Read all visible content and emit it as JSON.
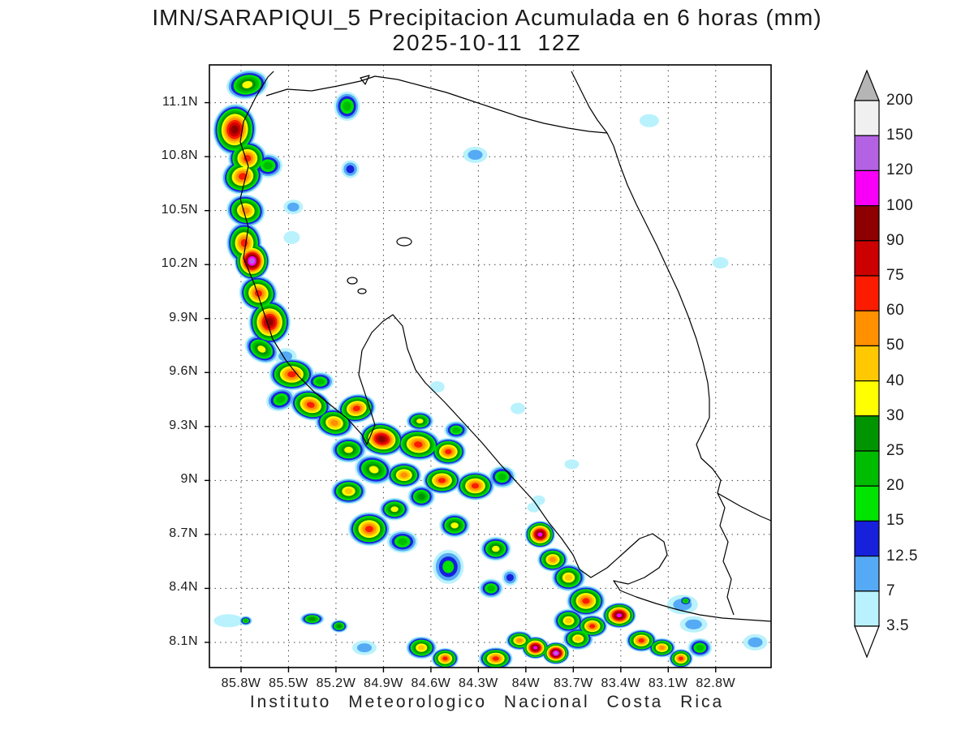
{
  "title": {
    "line1": "IMN/SARAPIQUI_5 Precipitacion Acumulada en 6 horas (mm)",
    "line2": "2025-10-11 12Z"
  },
  "footer": "Instituto Meteorologico Nacional Costa Rica",
  "chart_data": {
    "type": "heatmap",
    "subtype": "filled-contour accumulated precipitation map",
    "title": "IMN/SARAPIQUI_5 Precipitacion Acumulada en 6 horas (mm)",
    "valid_time": "2025-10-11 12Z",
    "units": "mm",
    "region": "Costa Rica",
    "x_ticks": [
      "85.8W",
      "85.5W",
      "85.2W",
      "84.9W",
      "84.6W",
      "84.3W",
      "84W",
      "83.7W",
      "83.4W",
      "83.1W",
      "82.8W"
    ],
    "y_ticks": [
      "11.1N",
      "10.8N",
      "10.5N",
      "10.2N",
      "9.9N",
      "9.6N",
      "9.3N",
      "9N",
      "8.7N",
      "8.4N",
      "8.1N"
    ],
    "colorbar": {
      "labels_top_to_bottom": [
        "200",
        "150",
        "120",
        "100",
        "90",
        "75",
        "60",
        "50",
        "40",
        "30",
        "25",
        "20",
        "15",
        "12.5",
        "7",
        "3.5"
      ],
      "segment_colors_top_to_bottom": [
        "#f0f0f0",
        "#b362e3",
        "#f800f8",
        "#8e0000",
        "#cc0000",
        "#fb1c00",
        "#ff9000",
        "#ffc800",
        "#ffff00",
        "#009400",
        "#00bc00",
        "#00e400",
        "#1721dc",
        "#55aaf5",
        "#b9f2fc"
      ],
      "over_color": "#b5b5b5",
      "under_color": "#ffffff",
      "levels_mm_ascending": [
        3.5,
        7,
        12.5,
        15,
        20,
        25,
        30,
        40,
        50,
        60,
        75,
        90,
        100,
        120,
        150,
        200
      ]
    },
    "palette_ascending": [
      "#b9f2fc",
      "#55aaf5",
      "#1721dc",
      "#00e400",
      "#00bc00",
      "#009400",
      "#ffff00",
      "#ffc800",
      "#ff9000",
      "#fb1c00",
      "#cc0000",
      "#8e0000",
      "#f800f8",
      "#b362e3"
    ],
    "cells_format": "[lon_W, lat_N, radius_x_px, radius_y_px, max_level_index, rotation_deg]",
    "cells": [
      [
        85.76,
        11.2,
        26,
        18,
        6,
        -10
      ],
      [
        85.84,
        10.95,
        27,
        32,
        11,
        5
      ],
      [
        85.76,
        10.79,
        24,
        22,
        9,
        0
      ],
      [
        85.79,
        10.69,
        26,
        22,
        9,
        -15
      ],
      [
        85.63,
        10.75,
        18,
        15,
        4,
        0
      ],
      [
        85.77,
        10.5,
        24,
        20,
        8,
        10
      ],
      [
        85.78,
        10.32,
        22,
        26,
        9,
        0
      ],
      [
        85.73,
        10.22,
        22,
        24,
        13,
        0
      ],
      [
        85.69,
        10.04,
        24,
        22,
        9,
        20
      ],
      [
        85.62,
        9.88,
        26,
        28,
        11,
        0
      ],
      [
        85.67,
        9.73,
        22,
        16,
        6,
        30
      ],
      [
        85.48,
        9.59,
        28,
        20,
        9,
        0
      ],
      [
        85.55,
        9.45,
        18,
        14,
        4,
        -20
      ],
      [
        85.13,
        11.08,
        16,
        18,
        4,
        0
      ],
      [
        85.11,
        10.73,
        11,
        11,
        2,
        0
      ],
      [
        84.32,
        10.81,
        15,
        10,
        1,
        0
      ],
      [
        83.22,
        11.0,
        12,
        8,
        0,
        0
      ],
      [
        82.77,
        10.21,
        10,
        7,
        0,
        0
      ],
      [
        85.47,
        10.52,
        12,
        9,
        1,
        0
      ],
      [
        85.48,
        10.35,
        10,
        8,
        0,
        0
      ],
      [
        84.56,
        9.52,
        9,
        7,
        0,
        0
      ],
      [
        84.05,
        9.4,
        9,
        7,
        0,
        0
      ],
      [
        85.36,
        9.42,
        26,
        19,
        9,
        15
      ],
      [
        85.21,
        9.32,
        24,
        18,
        8,
        10
      ],
      [
        85.07,
        9.4,
        24,
        18,
        9,
        -10
      ],
      [
        84.91,
        9.23,
        28,
        21,
        11,
        10
      ],
      [
        84.68,
        9.2,
        28,
        20,
        9,
        5
      ],
      [
        84.49,
        9.16,
        22,
        17,
        9,
        0
      ],
      [
        85.12,
        9.17,
        22,
        16,
        6,
        0
      ],
      [
        84.96,
        9.06,
        24,
        18,
        6,
        15
      ],
      [
        84.77,
        9.03,
        22,
        16,
        8,
        0
      ],
      [
        84.53,
        9.0,
        24,
        17,
        9,
        0
      ],
      [
        84.32,
        8.97,
        24,
        18,
        9,
        0
      ],
      [
        84.15,
        9.02,
        17,
        14,
        4,
        0
      ],
      [
        85.12,
        8.94,
        22,
        16,
        7,
        0
      ],
      [
        84.99,
        8.73,
        26,
        21,
        9,
        0
      ],
      [
        84.83,
        8.84,
        19,
        14,
        6,
        0
      ],
      [
        84.66,
        8.91,
        17,
        14,
        5,
        0
      ],
      [
        84.78,
        8.66,
        19,
        14,
        4,
        0
      ],
      [
        84.45,
        8.75,
        19,
        15,
        6,
        0
      ],
      [
        84.49,
        8.52,
        19,
        21,
        3,
        0
      ],
      [
        84.19,
        8.62,
        19,
        15,
        6,
        0
      ],
      [
        84.1,
        8.46,
        10,
        10,
        2,
        0
      ],
      [
        84.22,
        8.4,
        15,
        12,
        4,
        0
      ],
      [
        83.91,
        8.7,
        19,
        17,
        12,
        0
      ],
      [
        83.83,
        8.56,
        19,
        15,
        8,
        0
      ],
      [
        83.73,
        8.46,
        21,
        17,
        7,
        0
      ],
      [
        83.62,
        8.33,
        24,
        19,
        9,
        0
      ],
      [
        83.73,
        8.22,
        19,
        15,
        7,
        0
      ],
      [
        85.88,
        8.22,
        18,
        8,
        0,
        0
      ],
      [
        85.77,
        8.22,
        8,
        6,
        4,
        0
      ],
      [
        85.35,
        8.23,
        15,
        8,
        5,
        0
      ],
      [
        85.18,
        8.19,
        11,
        8,
        5,
        0
      ],
      [
        85.02,
        8.07,
        15,
        9,
        1,
        0
      ],
      [
        84.66,
        8.07,
        19,
        14,
        7,
        0
      ],
      [
        84.51,
        8.01,
        17,
        13,
        9,
        0
      ],
      [
        84.19,
        8.01,
        21,
        14,
        9,
        0
      ],
      [
        84.04,
        8.11,
        17,
        12,
        8,
        0
      ],
      [
        83.94,
        8.07,
        17,
        14,
        12,
        0
      ],
      [
        83.81,
        8.04,
        17,
        14,
        13,
        0
      ],
      [
        83.67,
        8.12,
        19,
        14,
        7,
        0
      ],
      [
        83.58,
        8.19,
        19,
        14,
        9,
        0
      ],
      [
        83.41,
        8.25,
        21,
        16,
        12,
        0
      ],
      [
        83.27,
        8.11,
        19,
        14,
        9,
        0
      ],
      [
        83.14,
        8.07,
        17,
        12,
        8,
        0
      ],
      [
        83.02,
        8.01,
        15,
        12,
        9,
        0
      ],
      [
        82.9,
        8.07,
        15,
        12,
        4,
        0
      ],
      [
        82.94,
        8.2,
        17,
        10,
        1,
        0
      ],
      [
        82.99,
        8.33,
        8,
        6,
        4,
        0
      ],
      [
        83.01,
        8.31,
        19,
        12,
        1,
        0
      ],
      [
        82.55,
        8.1,
        15,
        10,
        1,
        0
      ],
      [
        85.52,
        9.69,
        14,
        10,
        1,
        0
      ],
      [
        85.3,
        9.55,
        17,
        12,
        4,
        0
      ],
      [
        84.67,
        9.33,
        17,
        12,
        6,
        0
      ],
      [
        84.44,
        9.28,
        15,
        11,
        4,
        0
      ],
      [
        83.95,
        8.85,
        8,
        6,
        0,
        0
      ],
      [
        83.71,
        9.09,
        9,
        6,
        0,
        0
      ],
      [
        83.92,
        8.89,
        8,
        6,
        0,
        0
      ]
    ]
  }
}
